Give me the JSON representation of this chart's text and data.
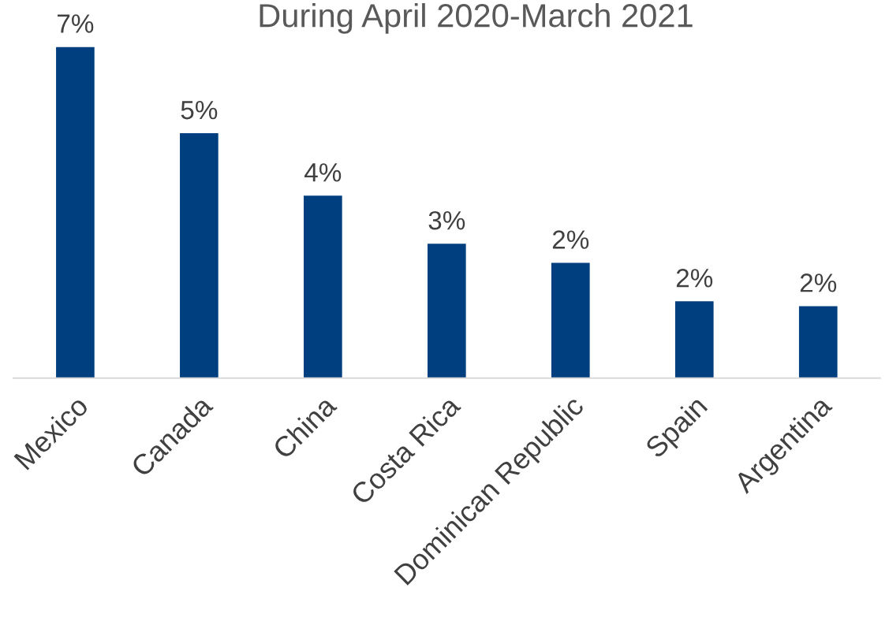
{
  "chart_data": {
    "type": "bar",
    "title": "During April 2020-March 2021",
    "categories": [
      "Mexico",
      "Canada",
      "China",
      "Costa Rica",
      "Dominican Republic",
      "Spain",
      "Argentina"
    ],
    "values": [
      6.9,
      5.1,
      3.8,
      2.8,
      2.4,
      1.6,
      1.5
    ],
    "value_labels": [
      "7%",
      "5%",
      "4%",
      "3%",
      "2%",
      "2%",
      "2%"
    ],
    "color": "#003f7f",
    "grid": false,
    "legend": false
  }
}
